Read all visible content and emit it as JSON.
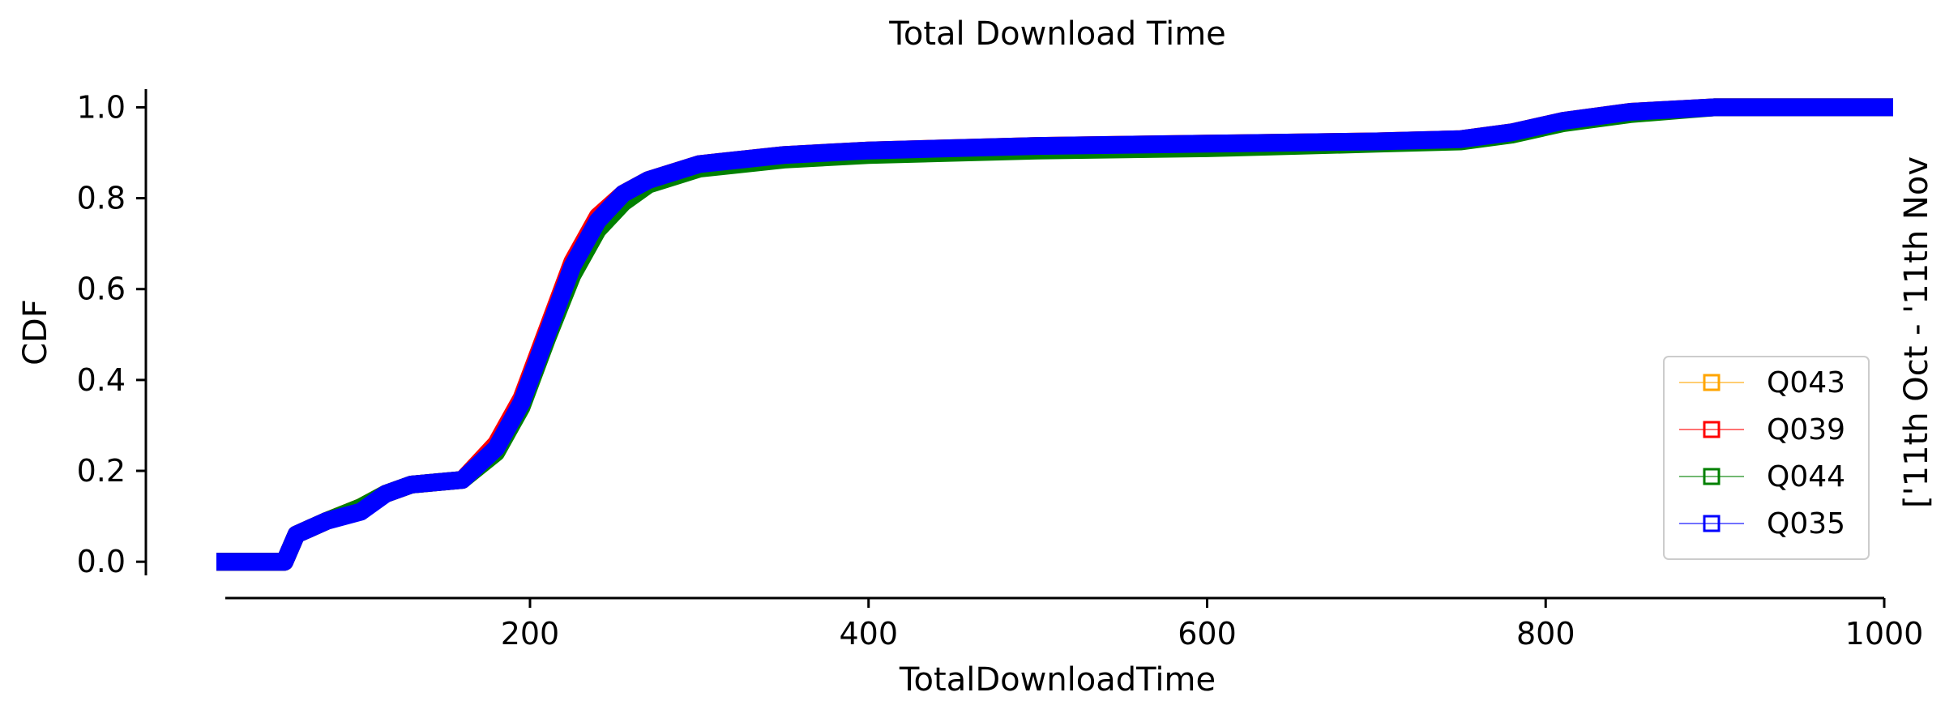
{
  "chart_data": {
    "type": "line",
    "title": "Total Download Time",
    "xlabel": "TotalDownloadTime",
    "ylabel": "CDF",
    "side_label": "['11th Oct - '11th Nov",
    "xlim": [
      20,
      1000
    ],
    "ylim": [
      -0.03,
      1.04
    ],
    "xticks": [
      200,
      400,
      600,
      800,
      1000
    ],
    "xtick_labels": [
      "200",
      "400",
      "600",
      "800",
      "1000"
    ],
    "yticks": [
      0.0,
      0.2,
      0.4,
      0.6,
      0.8,
      1.0
    ],
    "ytick_labels": [
      "0.0",
      "0.2",
      "0.4",
      "0.6",
      "0.8",
      "1.0"
    ],
    "grid": false,
    "legend_position": "lower-right",
    "series": [
      {
        "name": "Q043",
        "color": "#ffa500",
        "x": [
          20,
          55,
          62,
          80,
          100,
          115,
          130,
          160,
          180,
          195,
          210,
          225,
          240,
          255,
          270,
          300,
          350,
          400,
          500,
          600,
          700,
          750,
          780,
          810,
          850,
          900,
          1000
        ],
        "y": [
          0.0,
          0.0,
          0.06,
          0.09,
          0.12,
          0.15,
          0.17,
          0.18,
          0.25,
          0.35,
          0.5,
          0.65,
          0.75,
          0.81,
          0.84,
          0.875,
          0.895,
          0.905,
          0.915,
          0.92,
          0.925,
          0.93,
          0.945,
          0.97,
          0.99,
          1.0,
          1.0
        ]
      },
      {
        "name": "Q039",
        "color": "#ff0000",
        "x": [
          20,
          55,
          62,
          80,
          100,
          115,
          130,
          160,
          180,
          195,
          210,
          225,
          240,
          255,
          270,
          300,
          350,
          400,
          500,
          600,
          700,
          750,
          780,
          810,
          850,
          900,
          1000
        ],
        "y": [
          0.0,
          0.0,
          0.06,
          0.09,
          0.12,
          0.15,
          0.17,
          0.18,
          0.26,
          0.36,
          0.51,
          0.66,
          0.76,
          0.81,
          0.84,
          0.875,
          0.895,
          0.905,
          0.915,
          0.92,
          0.925,
          0.93,
          0.945,
          0.97,
          0.99,
          1.0,
          1.0
        ]
      },
      {
        "name": "Q044",
        "color": "#008000",
        "x": [
          20,
          55,
          62,
          80,
          100,
          115,
          130,
          160,
          180,
          195,
          210,
          225,
          240,
          255,
          270,
          300,
          350,
          400,
          500,
          600,
          700,
          750,
          780,
          810,
          850,
          900,
          1000
        ],
        "y": [
          0.0,
          0.0,
          0.06,
          0.09,
          0.12,
          0.15,
          0.17,
          0.18,
          0.24,
          0.34,
          0.49,
          0.63,
          0.73,
          0.79,
          0.83,
          0.865,
          0.885,
          0.895,
          0.905,
          0.91,
          0.92,
          0.925,
          0.94,
          0.965,
          0.985,
          1.0,
          1.0
        ]
      },
      {
        "name": "Q035",
        "color": "#0000ff",
        "x": [
          20,
          55,
          62,
          80,
          100,
          115,
          130,
          160,
          180,
          195,
          210,
          225,
          240,
          255,
          270,
          300,
          350,
          400,
          500,
          600,
          700,
          750,
          780,
          810,
          850,
          900,
          1000
        ],
        "y": [
          0.0,
          0.0,
          0.06,
          0.09,
          0.11,
          0.15,
          0.17,
          0.18,
          0.25,
          0.35,
          0.5,
          0.65,
          0.75,
          0.81,
          0.84,
          0.875,
          0.895,
          0.905,
          0.915,
          0.92,
          0.925,
          0.93,
          0.945,
          0.97,
          0.99,
          1.0,
          1.0
        ]
      }
    ]
  }
}
